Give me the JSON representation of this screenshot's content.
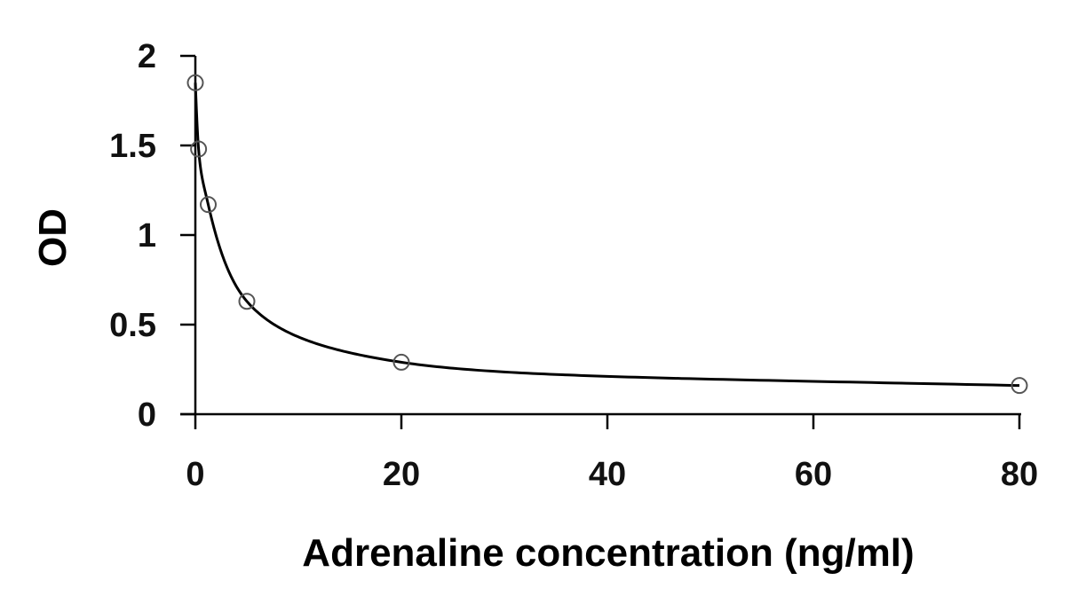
{
  "chart_data": {
    "type": "scatter",
    "title": "",
    "xlabel": "Adrenaline concentration (ng/ml)",
    "ylabel": "OD",
    "xlim": [
      0,
      80
    ],
    "ylim": [
      0,
      2
    ],
    "x_ticks": [
      0,
      20,
      40,
      60,
      80
    ],
    "y_ticks": [
      0,
      0.5,
      1,
      1.5,
      2
    ],
    "x_tick_labels": [
      "0",
      "20",
      "40",
      "60",
      "80"
    ],
    "y_tick_labels": [
      "0",
      "0.5",
      "1",
      "1.5",
      "2"
    ],
    "grid": false,
    "series": [
      {
        "x": [
          0,
          0.3125,
          1.25,
          5,
          20,
          80
        ],
        "y": [
          1.85,
          1.48,
          1.17,
          0.63,
          0.29,
          0.16
        ],
        "marker": "open-circle",
        "fit_curve": true,
        "color": "#000000"
      }
    ]
  }
}
